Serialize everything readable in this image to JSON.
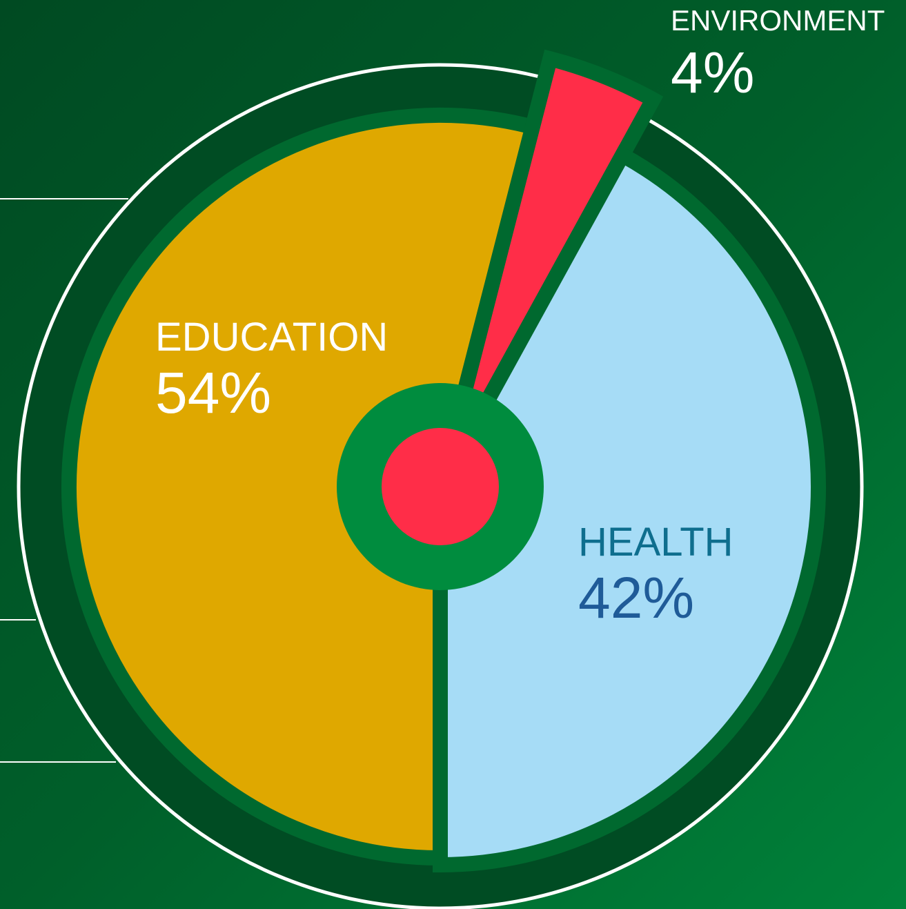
{
  "chart_data": {
    "type": "pie",
    "categories": [
      "EDUCATION",
      "ENVIRONMENT",
      "HEALTH"
    ],
    "values": [
      54,
      4,
      42
    ],
    "value_labels": [
      "54%",
      "4%",
      "42%"
    ],
    "colors": [
      "#dfa800",
      "#ff2d48",
      "#a6dcf6"
    ]
  }
}
